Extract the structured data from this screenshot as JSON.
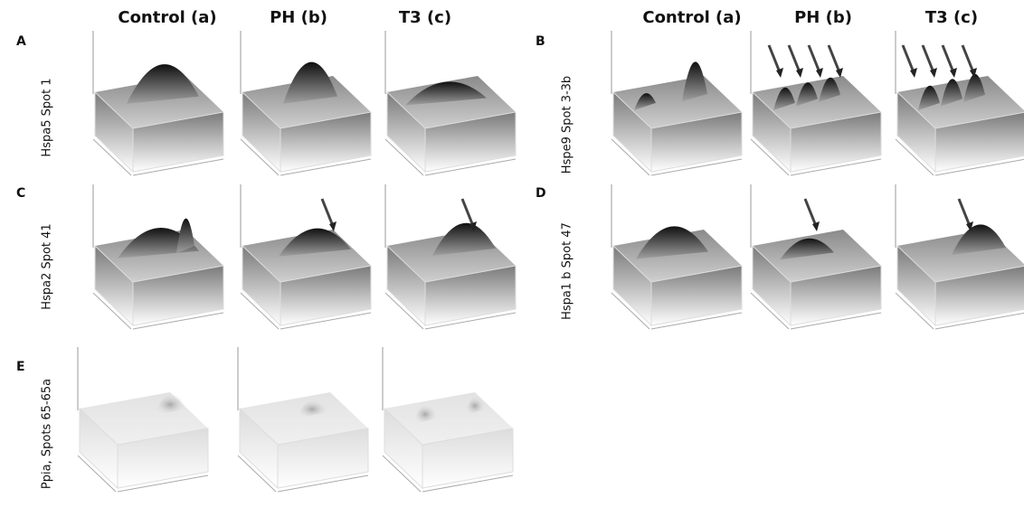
{
  "columns_left": [
    "Control (a)",
    "PH (b)",
    "T3 (c)"
  ],
  "columns_right": [
    "Control (a)",
    "PH (b)",
    "T3 (c)"
  ],
  "panels": [
    {
      "letter": "A",
      "label": "Hspa5 Spot 1"
    },
    {
      "letter": "B",
      "label": "Hspe9 Spot 3-3b"
    },
    {
      "letter": "C",
      "label": "Hspa2 Spot 41"
    },
    {
      "letter": "D",
      "label": "Hspa1 b Spot 47"
    },
    {
      "letter": "E",
      "label": "Ppia, Spots 65-65a"
    }
  ]
}
